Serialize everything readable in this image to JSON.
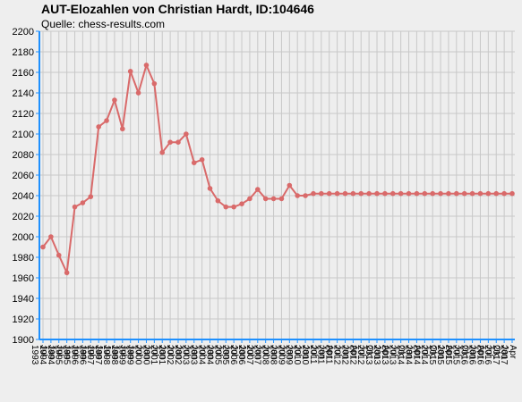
{
  "chart_data": {
    "type": "line",
    "title": "AUT-Elozahlen von Christian Hardt, ID:104646",
    "subtitle": "Quelle: chess-results.com",
    "xlabel": "",
    "ylabel": "",
    "ylim": [
      1900,
      2200
    ],
    "y_ticks": [
      1900,
      1920,
      1940,
      1960,
      1980,
      2000,
      2020,
      2040,
      2060,
      2080,
      2100,
      2120,
      2140,
      2160,
      2180,
      2200
    ],
    "grid": true,
    "legend": "none",
    "line_color": "#d96a6a",
    "categories": [
      "Jul 1993",
      "Jan 1994",
      "Jul 1994",
      "Jan 1995",
      "Jul 1995",
      "Jan 1996",
      "Jul 1996",
      "Jan 1997",
      "Jul 1997",
      "Jan 1998",
      "Jul 1998",
      "Jan 1999",
      "Jul 1999",
      "Jan 2000",
      "Jul 2000",
      "Jan 2001",
      "Jul 2001",
      "Jan 2002",
      "Jul 2002",
      "Jan 2003",
      "Jul 2003",
      "Jan 2004",
      "Jul 2004",
      "Jan 2005",
      "Jul 2005",
      "Jan 2006",
      "Jul 2006",
      "Jan 2007",
      "Jul 2007",
      "Jan 2008",
      "Jul 2008",
      "Jan 2009",
      "Jul 2009",
      "Jan 2010",
      "Jul 2010",
      "Jan 2011",
      "Apr 2011",
      "Jul 2011",
      "Jan 2012",
      "Apr 2012",
      "Jul 2012",
      "Okt 2012",
      "Jan 2013",
      "Apr 2013",
      "Jul 2013",
      "Okt 2013",
      "Jan 2014",
      "Apr 2014",
      "Jul 2014",
      "Okt 2014",
      "Jan 2015",
      "Apr 2015",
      "Jul 2015",
      "Okt 2015",
      "Jan 2016",
      "Apr 2016",
      "Jul 2016",
      "Okt 2016",
      "Jan 2017",
      "Apr 2017"
    ],
    "x_tick_labels": [
      "Jul 1993",
      "Jan 1994",
      "Jul 1994",
      "Jan 1995",
      "Jul 1995",
      "Jan 1996",
      "Jul 1996",
      "Jan 1997",
      "Jul 1997",
      "Jan 1998",
      "Jul 1998",
      "Jan 1999",
      "Jul 1999",
      "Jan 2000",
      "Jul 2000",
      "Jan 2001",
      "Jul 2001",
      "Jan 2002",
      "Jul 2002",
      "Jan 2003",
      "Jul 2003",
      "Jan 2004",
      "Jul 2004",
      "Jan 2005",
      "Jul 2005",
      "Jan 2006",
      "Jul 2006",
      "Jan 2007",
      "Jul 2007",
      "Jan 2008",
      "Jul 2008",
      "Jan 2009",
      "Jul 2009",
      "Jan 2010",
      "Jul 2010",
      "Jan 2011",
      "Apr 2011",
      "Jul 2011",
      "Jan 2012",
      "Apr 2012",
      "Jul 2012",
      "Okt 2012",
      "Jan 2013",
      "Apr 2013",
      "Jul 2013",
      "Okt 2013",
      "Jan 2014",
      "Apr 2014",
      "Jul 2014",
      "Okt 2014",
      "Jan 2015",
      "Apr 2015",
      "Jul 2015",
      "Okt 2015",
      "Jan 2016",
      "Apr 2016",
      "Jul 2016",
      "Okt 2016",
      "Jan 2017",
      "Apr 2017"
    ],
    "series": [
      {
        "values": [
          1990,
          2000,
          1982,
          1965,
          2029,
          2033,
          2039,
          2107,
          2113,
          2133,
          2105,
          2161,
          2140,
          2167,
          2149,
          2082,
          2092,
          2092,
          2100,
          2072,
          2075,
          2047,
          2035,
          2029,
          2029,
          2032,
          2037,
          2046,
          2037,
          2037,
          2037,
          2050,
          2040,
          2040,
          2042,
          2042,
          2042,
          2042,
          2042,
          2042,
          2042,
          2042,
          2042,
          2042,
          2042,
          2042,
          2042,
          2042,
          2042,
          2042,
          2042,
          2042,
          2042,
          2042,
          2042,
          2042,
          2042,
          2042,
          2042,
          2042
        ]
      }
    ]
  }
}
